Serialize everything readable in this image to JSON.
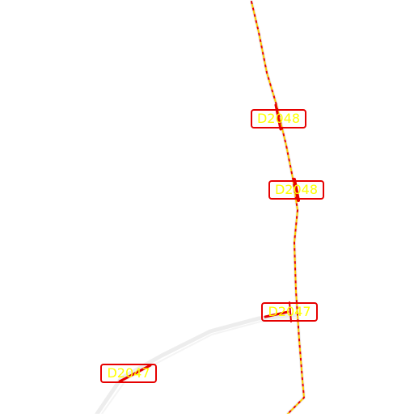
{
  "map": {
    "road_labels": [
      {
        "text": "D2048"
      },
      {
        "text": "D2048"
      },
      {
        "text": "D2047"
      },
      {
        "text": "D2047"
      }
    ],
    "colors": {
      "background": "#ffffff",
      "label_border": "#e60000",
      "label_text": "#ffff00",
      "route_dash_red": "#e60000",
      "route_dash_yellow": "#ffcc00",
      "road_casing": "#ebebeb"
    }
  }
}
